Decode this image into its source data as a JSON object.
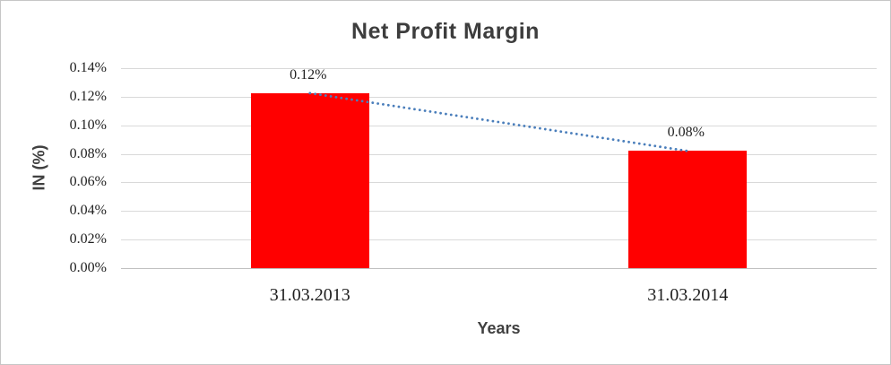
{
  "chart_data": {
    "type": "bar",
    "title": "Net Profit Margin",
    "xlabel": "Years",
    "ylabel": "IN (%)",
    "categories": [
      "31.03.2013",
      "31.03.2014"
    ],
    "series": [
      {
        "name": "Net Profit Margin",
        "values": [
          0.1225,
          0.082
        ]
      }
    ],
    "data_labels": [
      "0.12%",
      "0.08%"
    ],
    "ylim": [
      0,
      0.14
    ],
    "yticks": [
      0,
      0.02,
      0.04,
      0.06,
      0.08,
      0.1,
      0.12,
      0.14
    ],
    "ytick_labels": [
      "0.00%",
      "0.02%",
      "0.04%",
      "0.06%",
      "0.08%",
      "0.10%",
      "0.12%",
      "0.14%"
    ],
    "grid": true,
    "legend": "none",
    "bar_color": "#FF0000",
    "gridline_color": "#D9D9D9",
    "axis_line_color": "#BFBFBF",
    "trendline": {
      "type": "linear",
      "style": "dotted",
      "color": "#4A7EBB"
    }
  }
}
